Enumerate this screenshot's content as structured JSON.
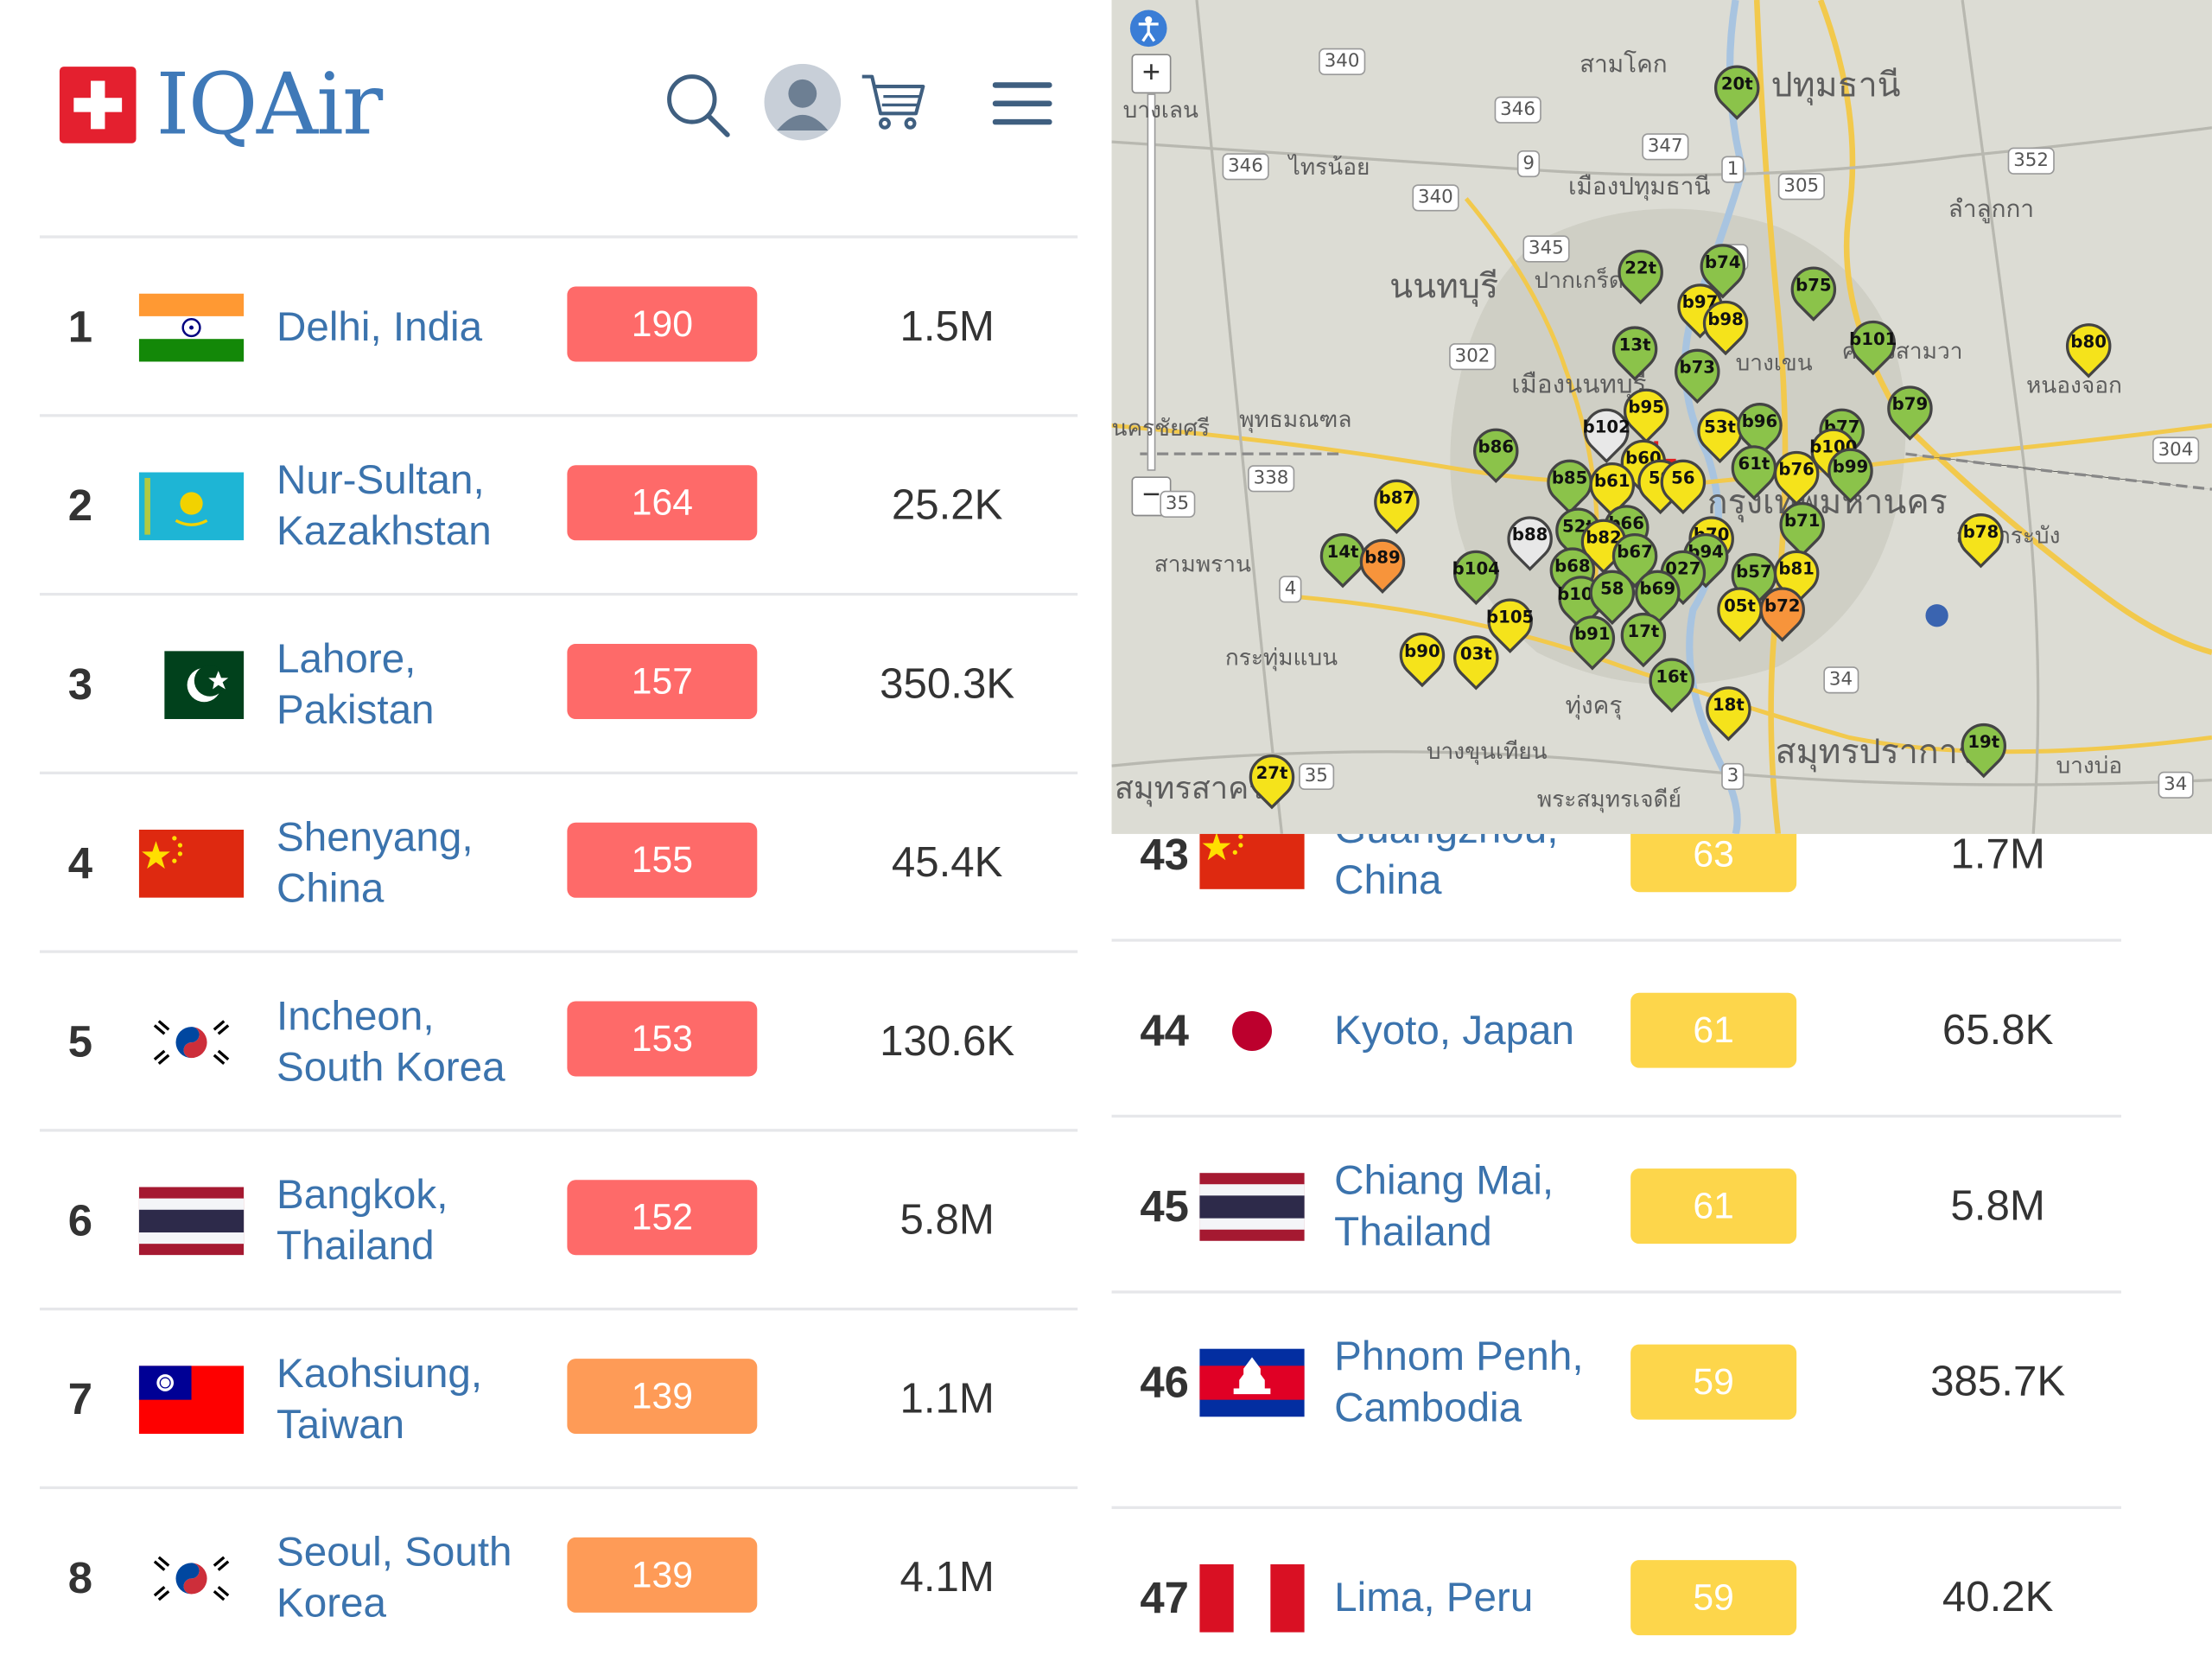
{
  "header": {
    "brand": "IQAir",
    "icons": [
      "swiss-flag-icon",
      "search-icon",
      "user-avatar-icon",
      "cart-icon",
      "menu-icon"
    ]
  },
  "colors": {
    "red": "#fe6a69",
    "orange": "#fe9b57",
    "yellow": "#fdd64b",
    "link": "#3b73ad"
  },
  "ranking_left": [
    {
      "rank": "1",
      "city": "Delhi, India",
      "aqi": "190",
      "followers": "1.5M",
      "flag": "india",
      "level": "red"
    },
    {
      "rank": "2",
      "city": "Nur-Sultan, Kazakhstan",
      "aqi": "164",
      "followers": "25.2K",
      "flag": "kazakhstan",
      "level": "red"
    },
    {
      "rank": "3",
      "city": "Lahore, Pakistan",
      "aqi": "157",
      "followers": "350.3K",
      "flag": "pakistan",
      "level": "red"
    },
    {
      "rank": "4",
      "city": "Shenyang, China",
      "aqi": "155",
      "followers": "45.4K",
      "flag": "china",
      "level": "red"
    },
    {
      "rank": "5",
      "city": "Incheon, South Korea",
      "aqi": "153",
      "followers": "130.6K",
      "flag": "south-korea",
      "level": "red"
    },
    {
      "rank": "6",
      "city": "Bangkok, Thailand",
      "aqi": "152",
      "followers": "5.8M",
      "flag": "thailand",
      "level": "red"
    },
    {
      "rank": "7",
      "city": "Kaohsiung, Taiwan",
      "aqi": "139",
      "followers": "1.1M",
      "flag": "taiwan",
      "level": "orange"
    },
    {
      "rank": "8",
      "city": "Seoul, South Korea",
      "aqi": "139",
      "followers": "4.1M",
      "flag": "south-korea",
      "level": "orange"
    }
  ],
  "ranking_right": [
    {
      "rank": "43",
      "city": "Guangzhou, China",
      "aqi": "63",
      "followers": "1.7M",
      "flag": "china",
      "level": "yellow"
    },
    {
      "rank": "44",
      "city": "Kyoto, Japan",
      "aqi": "61",
      "followers": "65.8K",
      "flag": "japan",
      "level": "yellow"
    },
    {
      "rank": "45",
      "city": "Chiang Mai, Thailand",
      "aqi": "61",
      "followers": "5.8M",
      "flag": "thailand",
      "level": "yellow"
    },
    {
      "rank": "46",
      "city": "Phnom Penh, Cambodia",
      "aqi": "59",
      "followers": "385.7K",
      "flag": "cambodia",
      "level": "yellow"
    },
    {
      "rank": "47",
      "city": "Lima, Peru",
      "aqi": "59",
      "followers": "40.2K",
      "flag": "peru",
      "level": "yellow"
    }
  ],
  "map": {
    "labels": [
      "สามโคก",
      "ปทุมธานี",
      "บางเลน",
      "ไทรน้อย",
      "เมืองปทุมธานี",
      "ลำลูกกา",
      "นนทบุรี",
      "ปากเกร็ด",
      "บางเขน",
      "คลองสามวา",
      "หนองจอก",
      "เมืองนนทบุรี",
      "พุทธมณฑล",
      "นครชัยศรี",
      "สามพราน",
      "กระทุ่มแบน",
      "กรุงเทพมหานคร",
      "ลาดกระบัง",
      "ทุ่งครุ",
      "บางขุนเทียน",
      "สมุทรปราการ",
      "สมุทรสาคร",
      "พระสมุทรเจดีย์",
      "บางบ่อ"
    ],
    "shields": [
      "340",
      "346",
      "347",
      "9",
      "1",
      "305",
      "352",
      "346",
      "340",
      "345",
      "31",
      "302",
      "304",
      "338",
      "4",
      "35",
      "3",
      "34",
      "34",
      "35"
    ],
    "markers": [
      "20t",
      "22t",
      "b74",
      "b75",
      "b97",
      "b98",
      "13t",
      "b73",
      "b101",
      "b80",
      "b79",
      "b95",
      "b102",
      "b86",
      "53t",
      "b96",
      "b77",
      "b100",
      "b60",
      "61t",
      "b76",
      "b99",
      "b85",
      "b61",
      "59",
      "56",
      "b87",
      "52t",
      "b66",
      "b71",
      "b78",
      "b88",
      "b82",
      "b67",
      "b70",
      "b94",
      "14t",
      "b89",
      "b104",
      "b68",
      "027",
      "b57",
      "b81",
      "b103",
      "58",
      "b69",
      "05t",
      "b72",
      "b105",
      "b91",
      "17t",
      "b90",
      "03t",
      "16t",
      "18t",
      "19t",
      "27t"
    ]
  }
}
